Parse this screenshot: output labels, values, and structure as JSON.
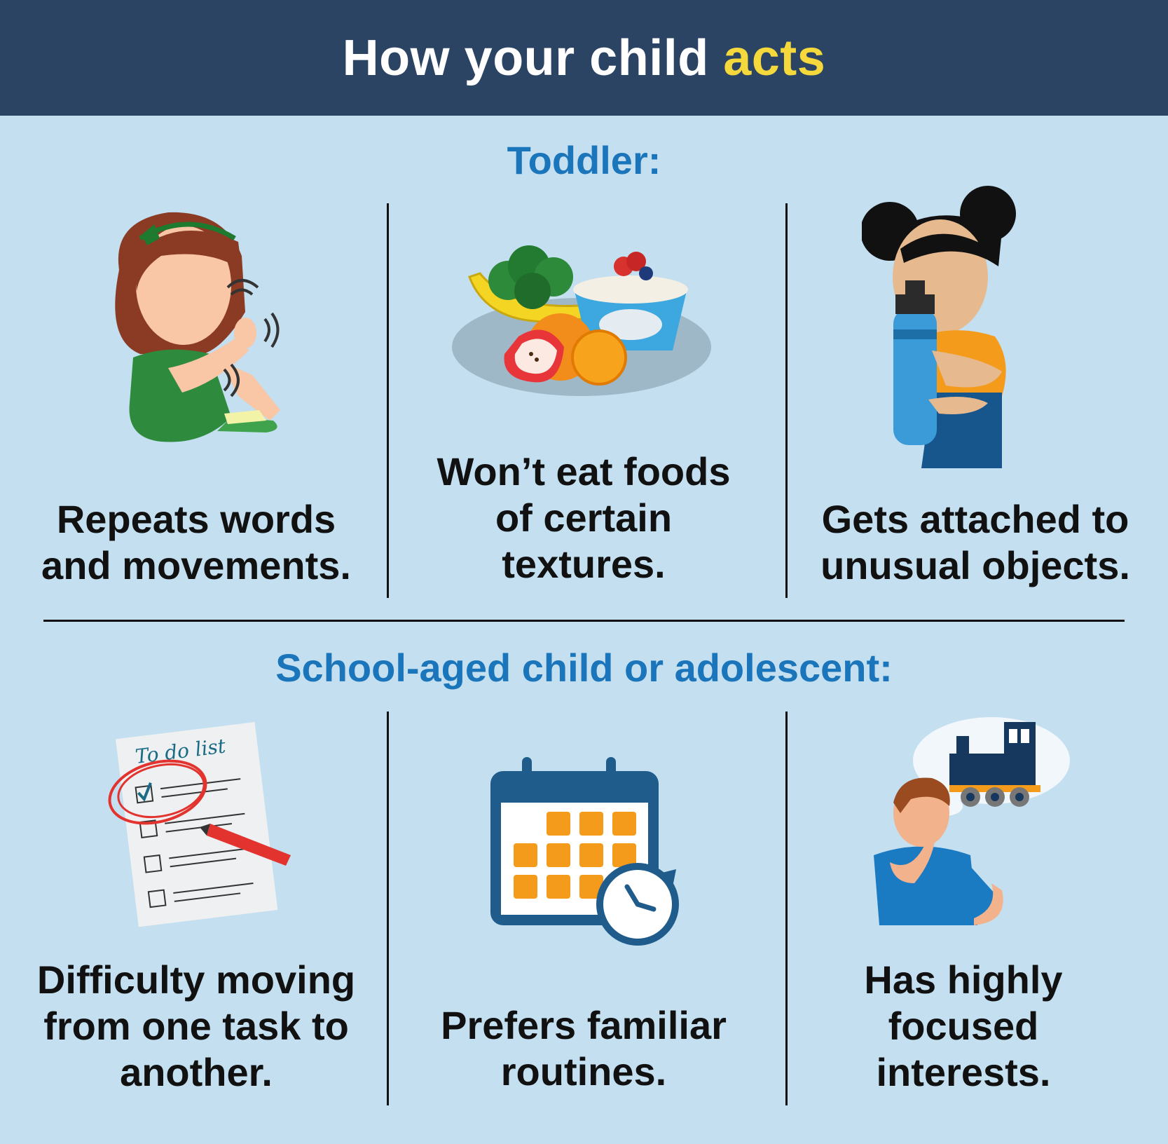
{
  "header": {
    "title_main": "How your child ",
    "title_accent": "acts"
  },
  "colors": {
    "header_bg": "#2c4463",
    "accent": "#f5d83b",
    "section_title": "#1b75bb",
    "background": "#c3dff0"
  },
  "toddler": {
    "title": "Toddler:",
    "items": [
      {
        "caption_lines": [
          "Repeats words",
          "and movements."
        ],
        "icon": "girl-hand-flapping-icon"
      },
      {
        "caption_lines": [
          "Won’t eat foods",
          "of certain",
          "textures."
        ],
        "icon": "food-plate-icon"
      },
      {
        "caption_lines": [
          "Gets attached to",
          "unusual objects."
        ],
        "icon": "child-hugging-bottle-icon"
      }
    ]
  },
  "school": {
    "title": "School-aged child or adolescent:",
    "items": [
      {
        "caption_lines": [
          "Difficulty moving",
          "from one task to",
          "another."
        ],
        "icon": "todo-list-icon",
        "todo_heading": "To do list"
      },
      {
        "caption_lines": [
          "Prefers familiar",
          "routines."
        ],
        "icon": "calendar-clock-icon"
      },
      {
        "caption_lines": [
          "Has highly",
          "focused",
          "interests."
        ],
        "icon": "boy-thinking-train-icon"
      }
    ]
  }
}
